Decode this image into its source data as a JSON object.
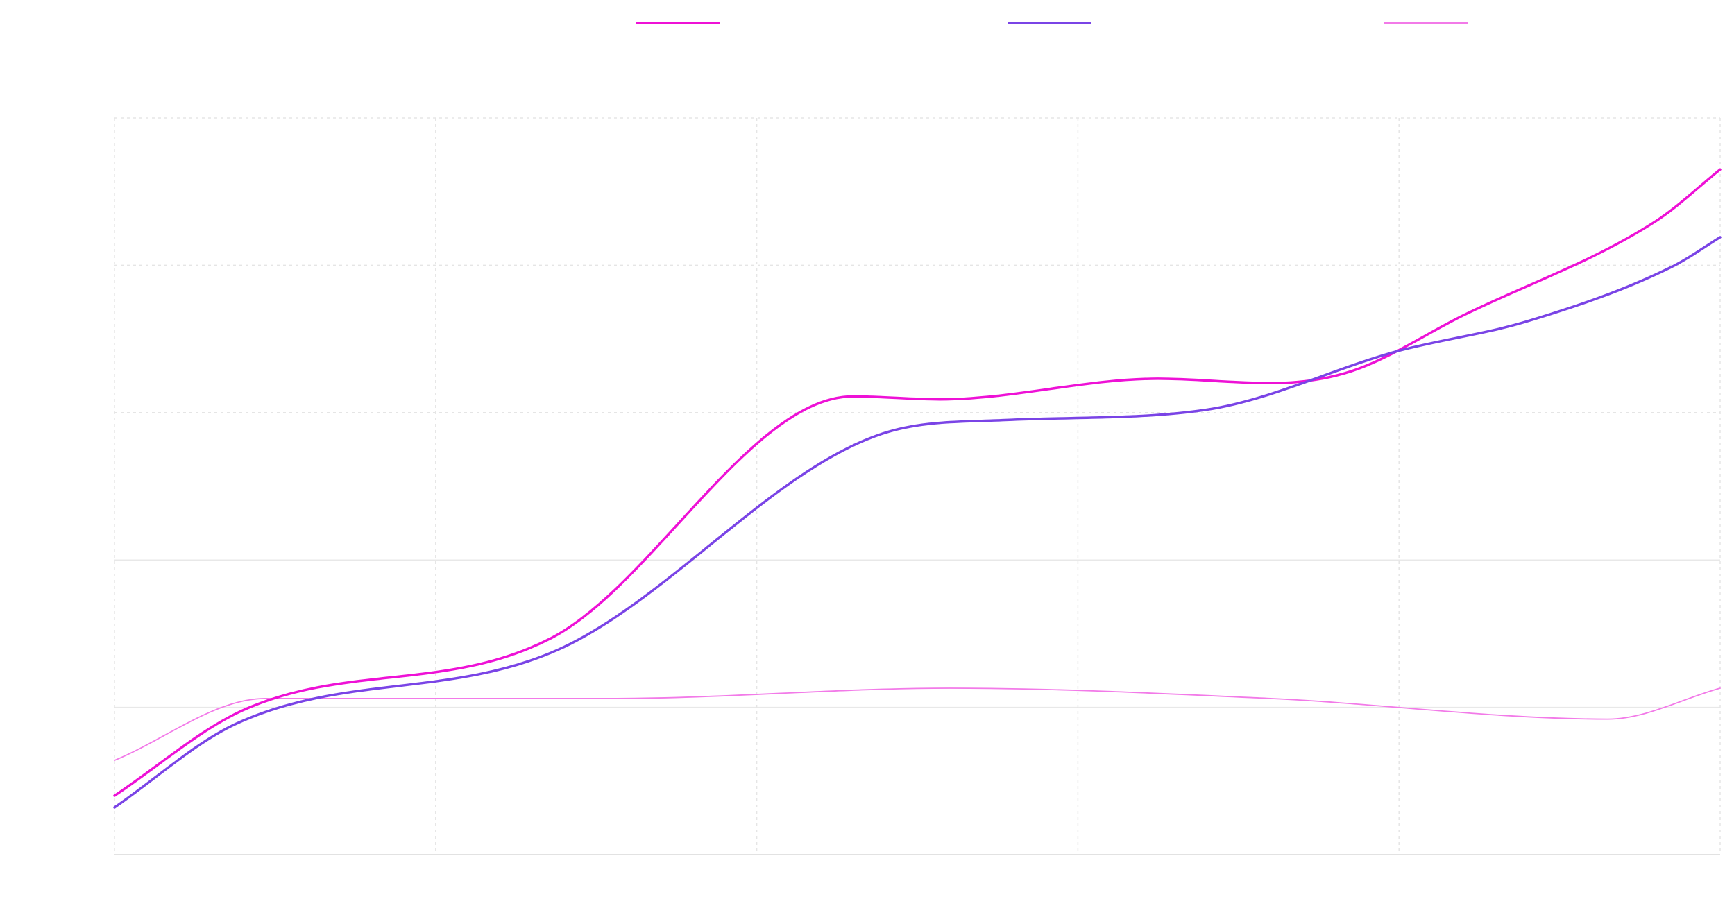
{
  "chart_data": {
    "type": "line",
    "title": "",
    "xlabel": "",
    "ylabel": "",
    "legend_position": "top",
    "grid": true,
    "x": [
      0,
      0.5,
      1,
      1.5,
      2,
      2.5,
      3,
      3.5,
      4,
      4.5,
      5
    ],
    "xlim": [
      0,
      5
    ],
    "ylim": [
      0,
      5
    ],
    "series": [
      {
        "name": "",
        "color": "#ee11d6",
        "width": 3.5,
        "points": [
          [
            0.0,
            0.4
          ],
          [
            0.4,
            0.98
          ],
          [
            1.36,
            1.47
          ],
          [
            2.3,
            3.11
          ],
          [
            2.57,
            3.09
          ],
          [
            3.25,
            3.23
          ],
          [
            3.6,
            3.2
          ],
          [
            3.85,
            3.28
          ],
          [
            4.2,
            3.66
          ],
          [
            4.8,
            4.3
          ],
          [
            5.0,
            4.65
          ]
        ]
      },
      {
        "name": "",
        "color": "#7a44e6",
        "width": 3.5,
        "points": [
          [
            0.0,
            0.32
          ],
          [
            0.38,
            0.89
          ],
          [
            1.38,
            1.39
          ],
          [
            2.41,
            2.87
          ],
          [
            2.78,
            2.95
          ],
          [
            3.4,
            3.02
          ],
          [
            4.0,
            3.42
          ],
          [
            4.4,
            3.62
          ],
          [
            4.85,
            3.99
          ],
          [
            5.0,
            4.19
          ]
        ]
      },
      {
        "name": "",
        "color": "#f27ae8",
        "width": 1.8,
        "points": [
          [
            0.0,
            0.64
          ],
          [
            0.47,
            1.06
          ],
          [
            1.55,
            1.06
          ],
          [
            2.6,
            1.13
          ],
          [
            3.6,
            1.06
          ],
          [
            4.65,
            0.92
          ],
          [
            5.0,
            1.13
          ]
        ]
      }
    ]
  }
}
